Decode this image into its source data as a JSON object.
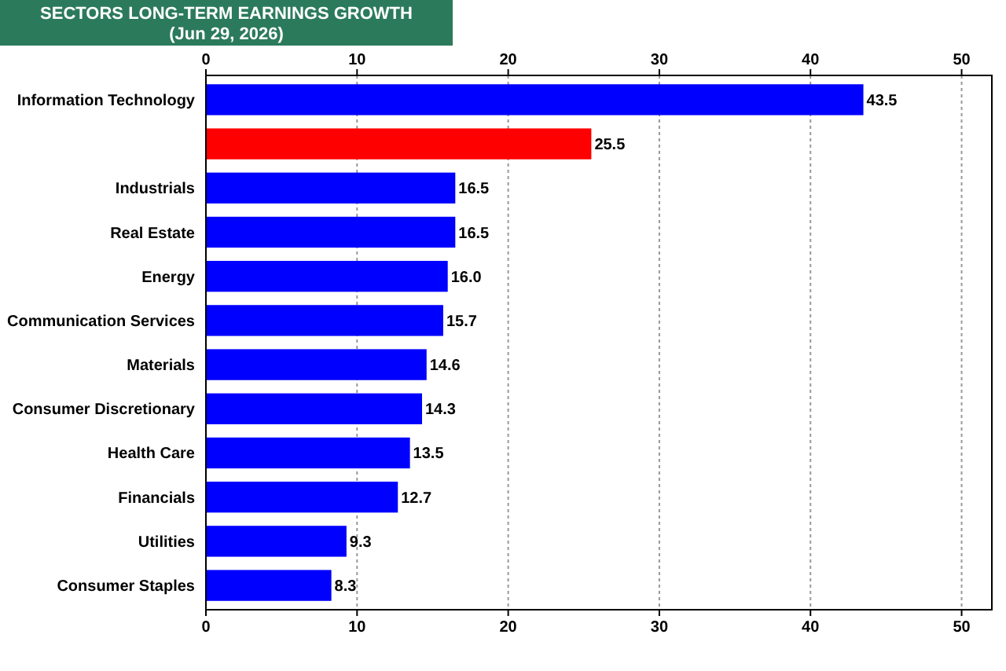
{
  "chart_data": {
    "type": "bar",
    "orientation": "horizontal",
    "title": "SECTORS LONG-TERM EARNINGS GROWTH",
    "subtitle": "(Jun 29, 2026)",
    "categories": [
      "Information Technology",
      null,
      "Industrials",
      "Real Estate",
      "Energy",
      "Communication Services",
      "Materials",
      "Consumer Discretionary",
      "Health Care",
      "Financials",
      "Utilities",
      "Consumer Staples"
    ],
    "values": [
      43.5,
      25.5,
      16.5,
      16.5,
      16.0,
      15.7,
      14.6,
      14.3,
      13.5,
      12.7,
      9.3,
      8.3
    ],
    "colors": [
      "#0000ff",
      "#ff0000",
      "#0000ff",
      "#0000ff",
      "#0000ff",
      "#0000ff",
      "#0000ff",
      "#0000ff",
      "#0000ff",
      "#0000ff",
      "#0000ff",
      "#0000ff"
    ],
    "value_labels": [
      "43.5",
      "25.5",
      "16.5",
      "16.5",
      "16.0",
      "15.7",
      "14.6",
      "14.3",
      "13.5",
      "12.7",
      "9.3",
      "8.3"
    ],
    "xlim": [
      0,
      52
    ],
    "xticks": [
      0,
      10,
      20,
      30,
      40,
      50
    ],
    "x2lim": [
      0,
      52
    ],
    "x2ticks": [
      0,
      10,
      20,
      30,
      40,
      50
    ],
    "grid": "x"
  }
}
